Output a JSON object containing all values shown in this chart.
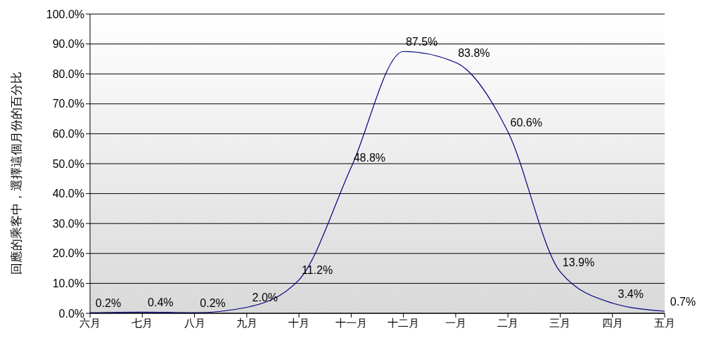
{
  "chart_data": {
    "type": "line",
    "ylabel": "回應的乘客中，選擇這個月份的百分比",
    "categories": [
      "六月",
      "七月",
      "八月",
      "九月",
      "十月",
      "十一月",
      "十二月",
      "一月",
      "二月",
      "三月",
      "四月",
      "五月"
    ],
    "series": [
      {
        "color": "#000080",
        "values": [
          0.2,
          0.4,
          0.2,
          2.0,
          11.2,
          48.8,
          87.5,
          83.8,
          60.6,
          13.9,
          3.4,
          0.7
        ],
        "value_labels": [
          "0.2%",
          "0.4%",
          "0.2%",
          "2.0%",
          "11.2%",
          "48.8%",
          "87.5%",
          "83.8%",
          "60.6%",
          "13.9%",
          "3.4%",
          "0.7%"
        ]
      }
    ],
    "ylim": [
      0,
      100
    ],
    "yticks": [
      {
        "value": 0,
        "label": "0.0%"
      },
      {
        "value": 10,
        "label": "10.0%"
      },
      {
        "value": 20,
        "label": "20.0%"
      },
      {
        "value": 30,
        "label": "30.0%"
      },
      {
        "value": 40,
        "label": "40.0%"
      },
      {
        "value": 50,
        "label": "50.0%"
      },
      {
        "value": 60,
        "label": "60.0%"
      },
      {
        "value": 70,
        "label": "70.0%"
      },
      {
        "value": 80,
        "label": "80.0%"
      },
      {
        "value": 90,
        "label": "90.0%"
      },
      {
        "value": 100,
        "label": "100.0%"
      }
    ],
    "grid": "y",
    "marker": "none",
    "line_style": "solid"
  }
}
